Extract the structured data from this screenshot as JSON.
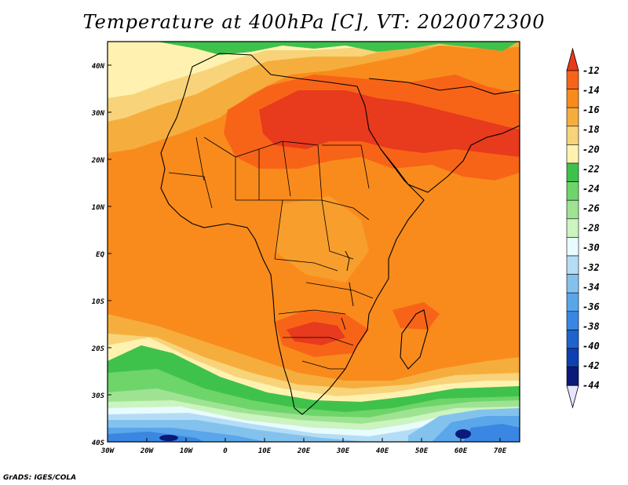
{
  "title": "Temperature at 400hPa [C], VT: 2020072300",
  "credit": "GrADS: IGES/COLA",
  "lat_labels": [
    "40N",
    "30N",
    "20N",
    "10N",
    "EQ",
    "10S",
    "20S",
    "30S",
    "40S"
  ],
  "lon_labels": [
    "30W",
    "20W",
    "10W",
    "0",
    "10E",
    "20E",
    "30E",
    "40E",
    "50E",
    "60E",
    "70E"
  ],
  "colorbar": {
    "labels": [
      "-12",
      "-14",
      "-16",
      "-18",
      "-20",
      "-22",
      "-24",
      "-26",
      "-28",
      "-30",
      "-32",
      "-34",
      "-36",
      "-38",
      "-40",
      "-42",
      "-44"
    ],
    "colors": [
      "#e83a1c",
      "#f76418",
      "#f98b1c",
      "#f5ae3d",
      "#f8d37a",
      "#fff2b0",
      "#3fc24b",
      "#6ed56a",
      "#9fe392",
      "#cbf4c0",
      "#e8fbff",
      "#b4ddf5",
      "#84c2ee",
      "#5aa6ea",
      "#3987e2",
      "#1f63cc",
      "#0d40b0",
      "#0a1a7a",
      "#e6e6ff"
    ]
  },
  "map": {
    "lat_range": [
      -40,
      45
    ],
    "lon_range": [
      -30,
      75
    ]
  }
}
